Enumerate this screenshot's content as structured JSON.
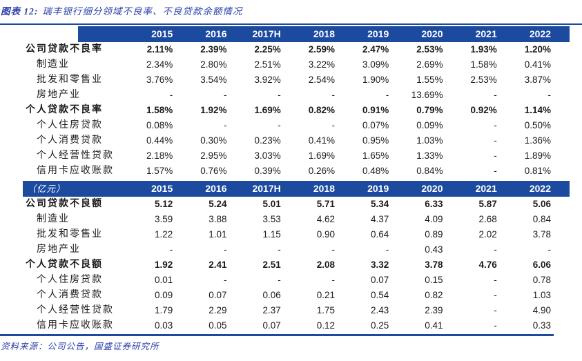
{
  "title": {
    "prefix": "图表 12:",
    "text": "瑞丰银行细分领域不良率、不良贷款余额情况"
  },
  "source": "资料来源：公司公告，国盛证券研究所",
  "colors": {
    "band_blue": "#1c4a9f",
    "rule_blue": "#1c4a9f",
    "title_blue": "#2b3fa8",
    "text_dark": "#1a1a1a"
  },
  "chart_data": {
    "type": "table",
    "title": "瑞丰银行细分领域不良率、不良贷款余额情况",
    "years": [
      "2015",
      "2016",
      "2017H",
      "2018",
      "2019",
      "2020",
      "2021",
      "2022"
    ],
    "sections": [
      {
        "unit_label": "",
        "rows": [
          {
            "label": "公司贷款不良率",
            "bold": true,
            "values": [
              "2.11%",
              "2.39%",
              "2.25%",
              "2.59%",
              "2.47%",
              "2.53%",
              "1.93%",
              "1.20%"
            ]
          },
          {
            "label": "制造业",
            "bold": false,
            "values": [
              "2.34%",
              "2.80%",
              "2.51%",
              "3.22%",
              "3.09%",
              "2.69%",
              "1.58%",
              "0.41%"
            ]
          },
          {
            "label": "批发和零售业",
            "bold": false,
            "values": [
              "3.76%",
              "3.54%",
              "3.92%",
              "2.54%",
              "1.90%",
              "1.55%",
              "2.53%",
              "3.87%"
            ]
          },
          {
            "label": "房地产业",
            "bold": false,
            "values": [
              "-",
              "-",
              "-",
              "-",
              "-",
              "13.69%",
              "-",
              "-"
            ]
          },
          {
            "label": "个人贷款不良率",
            "bold": true,
            "values": [
              "1.58%",
              "1.92%",
              "1.69%",
              "0.82%",
              "0.91%",
              "0.79%",
              "0.92%",
              "1.14%"
            ]
          },
          {
            "label": "个人住房贷款",
            "bold": false,
            "values": [
              "0.08%",
              "-",
              "-",
              "-",
              "0.07%",
              "0.09%",
              "-",
              "0.50%"
            ]
          },
          {
            "label": "个人消费贷款",
            "bold": false,
            "values": [
              "0.44%",
              "0.30%",
              "0.23%",
              "0.41%",
              "0.95%",
              "1.03%",
              "-",
              "1.36%"
            ]
          },
          {
            "label": "个人经营性贷款",
            "bold": false,
            "values": [
              "2.18%",
              "2.95%",
              "3.03%",
              "1.69%",
              "1.65%",
              "1.33%",
              "-",
              "1.89%"
            ]
          },
          {
            "label": "信用卡应收账款",
            "bold": false,
            "values": [
              "1.57%",
              "0.76%",
              "0.39%",
              "0.26%",
              "0.48%",
              "0.84%",
              "-",
              "0.81%"
            ]
          }
        ]
      },
      {
        "unit_label": "（亿元）",
        "rows": [
          {
            "label": "公司贷款不良额",
            "bold": true,
            "values": [
              "5.12",
              "5.24",
              "5.01",
              "5.71",
              "5.34",
              "6.33",
              "5.87",
              "5.06"
            ]
          },
          {
            "label": "制造业",
            "bold": false,
            "values": [
              "3.59",
              "3.88",
              "3.53",
              "4.62",
              "4.37",
              "4.09",
              "2.68",
              "0.84"
            ]
          },
          {
            "label": "批发和零售业",
            "bold": false,
            "values": [
              "1.22",
              "1.01",
              "1.15",
              "0.90",
              "0.64",
              "0.89",
              "2.02",
              "3.78"
            ]
          },
          {
            "label": "房地产业",
            "bold": false,
            "values": [
              "-",
              "-",
              "-",
              "-",
              "-",
              "0.43",
              "-",
              "-"
            ]
          },
          {
            "label": "个人贷款不良额",
            "bold": true,
            "values": [
              "1.92",
              "2.41",
              "2.51",
              "2.08",
              "3.32",
              "3.78",
              "4.76",
              "6.06"
            ]
          },
          {
            "label": "个人住房贷款",
            "bold": false,
            "values": [
              "0.01",
              "-",
              "-",
              "-",
              "0.07",
              "0.15",
              "-",
              "0.78"
            ]
          },
          {
            "label": "个人消费贷款",
            "bold": false,
            "values": [
              "0.09",
              "0.07",
              "0.06",
              "0.21",
              "0.54",
              "0.82",
              "-",
              "1.03"
            ]
          },
          {
            "label": "个人经营性贷款",
            "bold": false,
            "values": [
              "1.79",
              "2.29",
              "2.37",
              "1.75",
              "2.43",
              "2.39",
              "-",
              "4.90"
            ]
          },
          {
            "label": "信用卡应收账款",
            "bold": false,
            "values": [
              "0.03",
              "0.05",
              "0.07",
              "0.12",
              "0.25",
              "0.41",
              "-",
              "0.33"
            ]
          }
        ]
      }
    ]
  }
}
